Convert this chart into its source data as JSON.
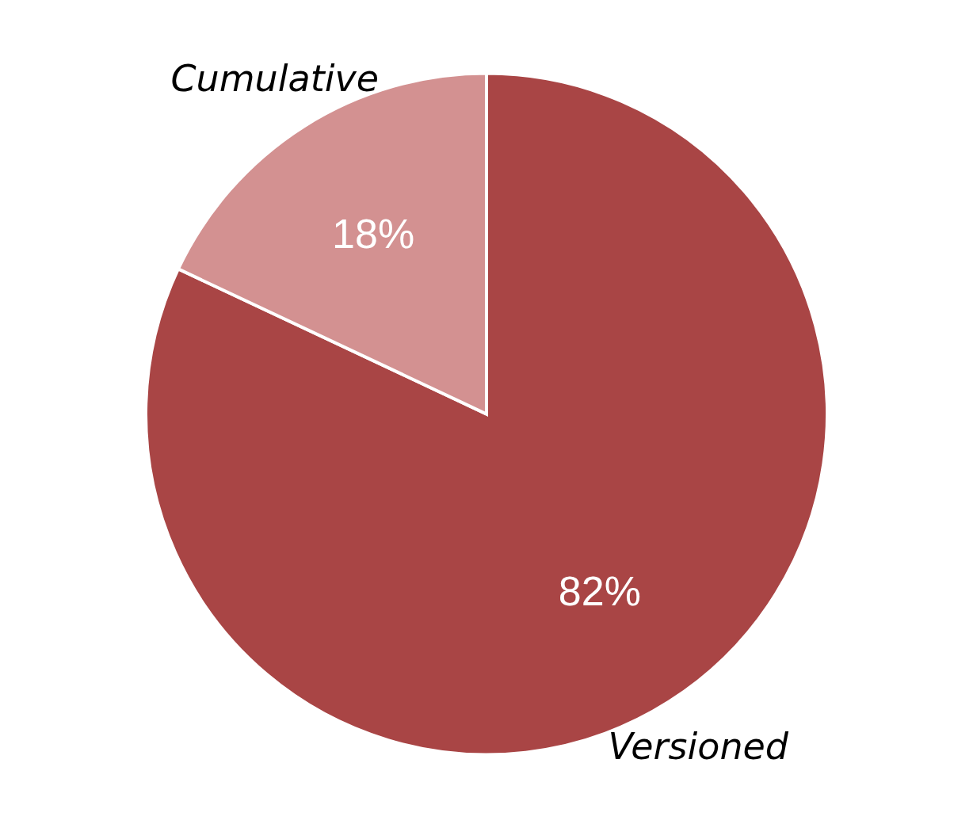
{
  "chart_data": {
    "type": "pie",
    "categories": [
      "Versioned",
      "Cumulative"
    ],
    "values": [
      82,
      18
    ],
    "colors": [
      "#a94545",
      "#d39191"
    ],
    "value_labels": [
      "82%",
      "18%"
    ]
  }
}
